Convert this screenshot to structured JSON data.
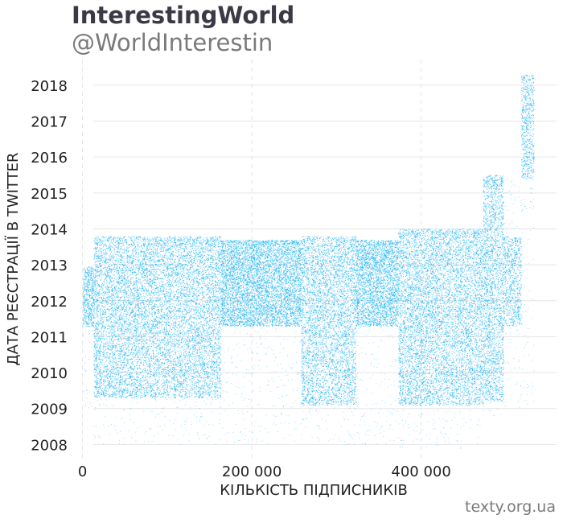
{
  "header": {
    "title": "InterestingWorld",
    "subtitle": "@WorldInterestin"
  },
  "footer": {
    "credit": "texty.org.ua"
  },
  "chart_data": {
    "type": "scatter",
    "title": "InterestingWorld",
    "subtitle": "@WorldInterestin",
    "xlabel": "КІЛЬКІСТЬ ПІДПИСНИКІВ",
    "ylabel": "ДАТА РЕЄСТРАЦІЇ В TWITTER",
    "xlim": [
      -12000,
      560000
    ],
    "ylim": [
      2007.65,
      2018.4
    ],
    "x_ticks": [
      0,
      200000,
      400000
    ],
    "x_tick_labels": [
      "0",
      "200 000",
      "400 000"
    ],
    "y_ticks": [
      2008,
      2009,
      2010,
      2011,
      2012,
      2013,
      2014,
      2015,
      2016,
      2017,
      2018
    ],
    "y_tick_labels": [
      "2008",
      "2009",
      "2010",
      "2011",
      "2012",
      "2013",
      "2014",
      "2015",
      "2016",
      "2017",
      "2018"
    ],
    "grid": {
      "vertical": "dashed",
      "horizontal": "solid"
    },
    "point_color": "#1fb4f2",
    "x_axis": "follower order number (index)",
    "y_axis": "account registration date (year)",
    "segments": [
      {
        "x": [
          0,
          13000
        ],
        "core": [
          2011.3,
          2012.95
        ],
        "sparse": [
          2009.0,
          2011.3
        ],
        "density": "high"
      },
      {
        "x": [
          13000,
          163000
        ],
        "core": [
          2009.3,
          2013.8
        ],
        "sparse": [
          2008.0,
          2009.3
        ],
        "density": "medium"
      },
      {
        "x": [
          163000,
          258000
        ],
        "core": [
          2011.3,
          2013.7
        ],
        "sparse": [
          2008.0,
          2011.3
        ],
        "density": "high"
      },
      {
        "x": [
          258000,
          323000
        ],
        "core": [
          2009.1,
          2013.8
        ],
        "sparse": [
          2008.0,
          2009.1
        ],
        "density": "medium"
      },
      {
        "x": [
          323000,
          373000
        ],
        "core": [
          2011.3,
          2013.7
        ],
        "sparse": [
          2008.0,
          2011.3
        ],
        "density": "high"
      },
      {
        "x": [
          373000,
          473000
        ],
        "core": [
          2009.1,
          2014.0
        ],
        "sparse": [
          2007.9,
          2009.1
        ],
        "density": "medium"
      },
      {
        "x": [
          473000,
          497000
        ],
        "core": [
          2009.2,
          2015.5
        ],
        "sparse": [
          2008.8,
          2009.2
        ],
        "density": "medium"
      },
      {
        "x": [
          497000,
          518000
        ],
        "core": [
          2011.3,
          2013.8
        ],
        "sparse": [
          2009.0,
          2015.5
        ],
        "density": "medium"
      },
      {
        "x": [
          518000,
          533000
        ],
        "core": [
          2015.4,
          2018.3
        ],
        "sparse": [
          2009.0,
          2015.4
        ],
        "density": "medium"
      }
    ]
  }
}
